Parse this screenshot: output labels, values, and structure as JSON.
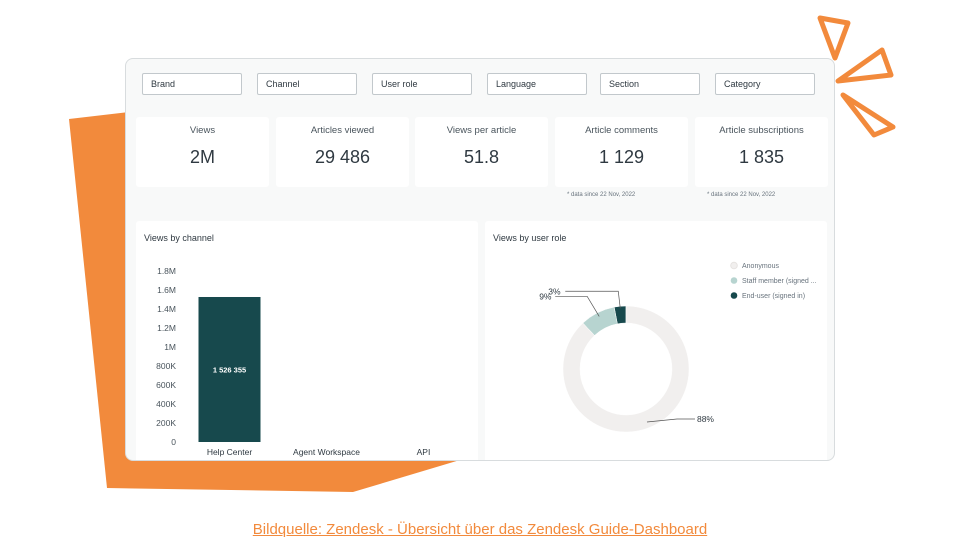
{
  "filters": [
    "Brand",
    "Channel",
    "User role",
    "Language",
    "Section",
    "Category"
  ],
  "kpis": [
    {
      "label": "Views",
      "value": "2M"
    },
    {
      "label": "Articles viewed",
      "value": "29 486"
    },
    {
      "label": "Views per article",
      "value": "51.8"
    },
    {
      "label": "Article comments",
      "value": "1 129"
    },
    {
      "label": "Article subscriptions",
      "value": "1 835"
    }
  ],
  "notes": {
    "comments": "* data since 22 Nov, 2022",
    "subscriptions": "* data since 22 Nov, 2022"
  },
  "colors": {
    "accent_orange": "#f28a3c",
    "bar_dark": "#17494d",
    "donut_light": "#f1efee",
    "donut_staff": "#b7d4d0",
    "donut_enduser": "#17494d"
  },
  "charts": {
    "channel_title": "Views by channel",
    "role_title": "Views by user role"
  },
  "chart_data": [
    {
      "type": "bar",
      "title": "Views by channel",
      "categories": [
        "Help Center",
        "Agent Workspace",
        "API"
      ],
      "values": [
        1526355,
        0,
        0
      ],
      "data_labels": [
        "1 526 355",
        "",
        ""
      ],
      "yticks": [
        "0",
        "200K",
        "400K",
        "600K",
        "800K",
        "1M",
        "1.2M",
        "1.4M",
        "1.6M",
        "1.8M"
      ],
      "ylim": [
        0,
        1800000
      ],
      "grid": false
    },
    {
      "type": "pie",
      "title": "Views by user role",
      "labels": [
        "Anonymous",
        "Staff member (signed ...",
        "End-user (signed in)"
      ],
      "values": [
        88,
        9,
        3
      ],
      "value_labels": [
        "88%",
        "9%",
        "3%"
      ],
      "colors": [
        "#f1efee",
        "#b7d4d0",
        "#17494d"
      ],
      "legend": "top-right"
    }
  ],
  "caption": "Bildquelle: Zendesk - Übersicht über das Zendesk Guide-Dashboard"
}
